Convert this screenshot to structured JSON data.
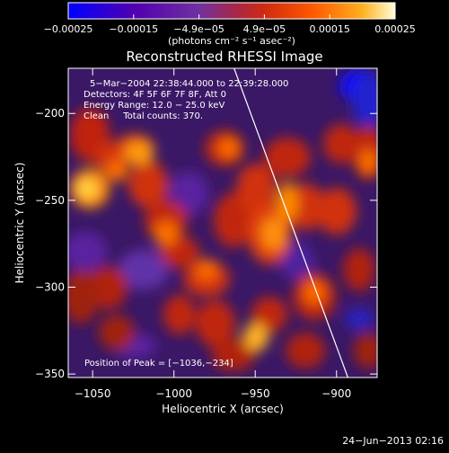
{
  "chart_data": {
    "type": "heatmap",
    "title": "Reconstructed RHESSI Image",
    "xlabel": "Heliocentric X (arcsec)",
    "ylabel": "Heliocentric Y (arcsec)",
    "xlim": [
      -1065,
      -875
    ],
    "ylim": [
      -352,
      -174
    ],
    "x_ticks": [
      -1050,
      -1000,
      -950,
      -900
    ],
    "y_ticks": [
      -200,
      -250,
      -300,
      -350
    ],
    "x_tick_labels": [
      "−1050",
      "−1000",
      "−950",
      "−900"
    ],
    "y_tick_labels": [
      "−200",
      "−250",
      "−300",
      "−350"
    ],
    "colorbar": {
      "min": -0.00025,
      "max": 0.00025,
      "tick_labels": [
        "−0.00025",
        "−0.00015",
        "−4.9e−05",
        "4.9e−05",
        "0.00015",
        "0.00025"
      ],
      "unit_label": "(photons cm⁻² s⁻¹ asec⁻²)",
      "colors": [
        "#0000ff",
        "#5000b0",
        "#7030a0",
        "#c03020",
        "#ff4000",
        "#ff9900",
        "#ffffcc"
      ]
    },
    "annotations": [
      "5−Mar−2004 22:38:44.000 to 22:39:28.000",
      "Detectors: 4F 5F 6F 7F 8F, Att 0",
      "Energy Range: 12.0 − 25.0 keV",
      "Clean     Total counts: 370."
    ],
    "peak_label": "Position of Peak = [−1036,−234]",
    "peak": [
      -1036,
      -234
    ],
    "limb_line": [
      [
        -963,
        -174
      ],
      [
        -893,
        -352
      ]
    ]
  },
  "timestamp": "24−Jun−2013 02:16"
}
